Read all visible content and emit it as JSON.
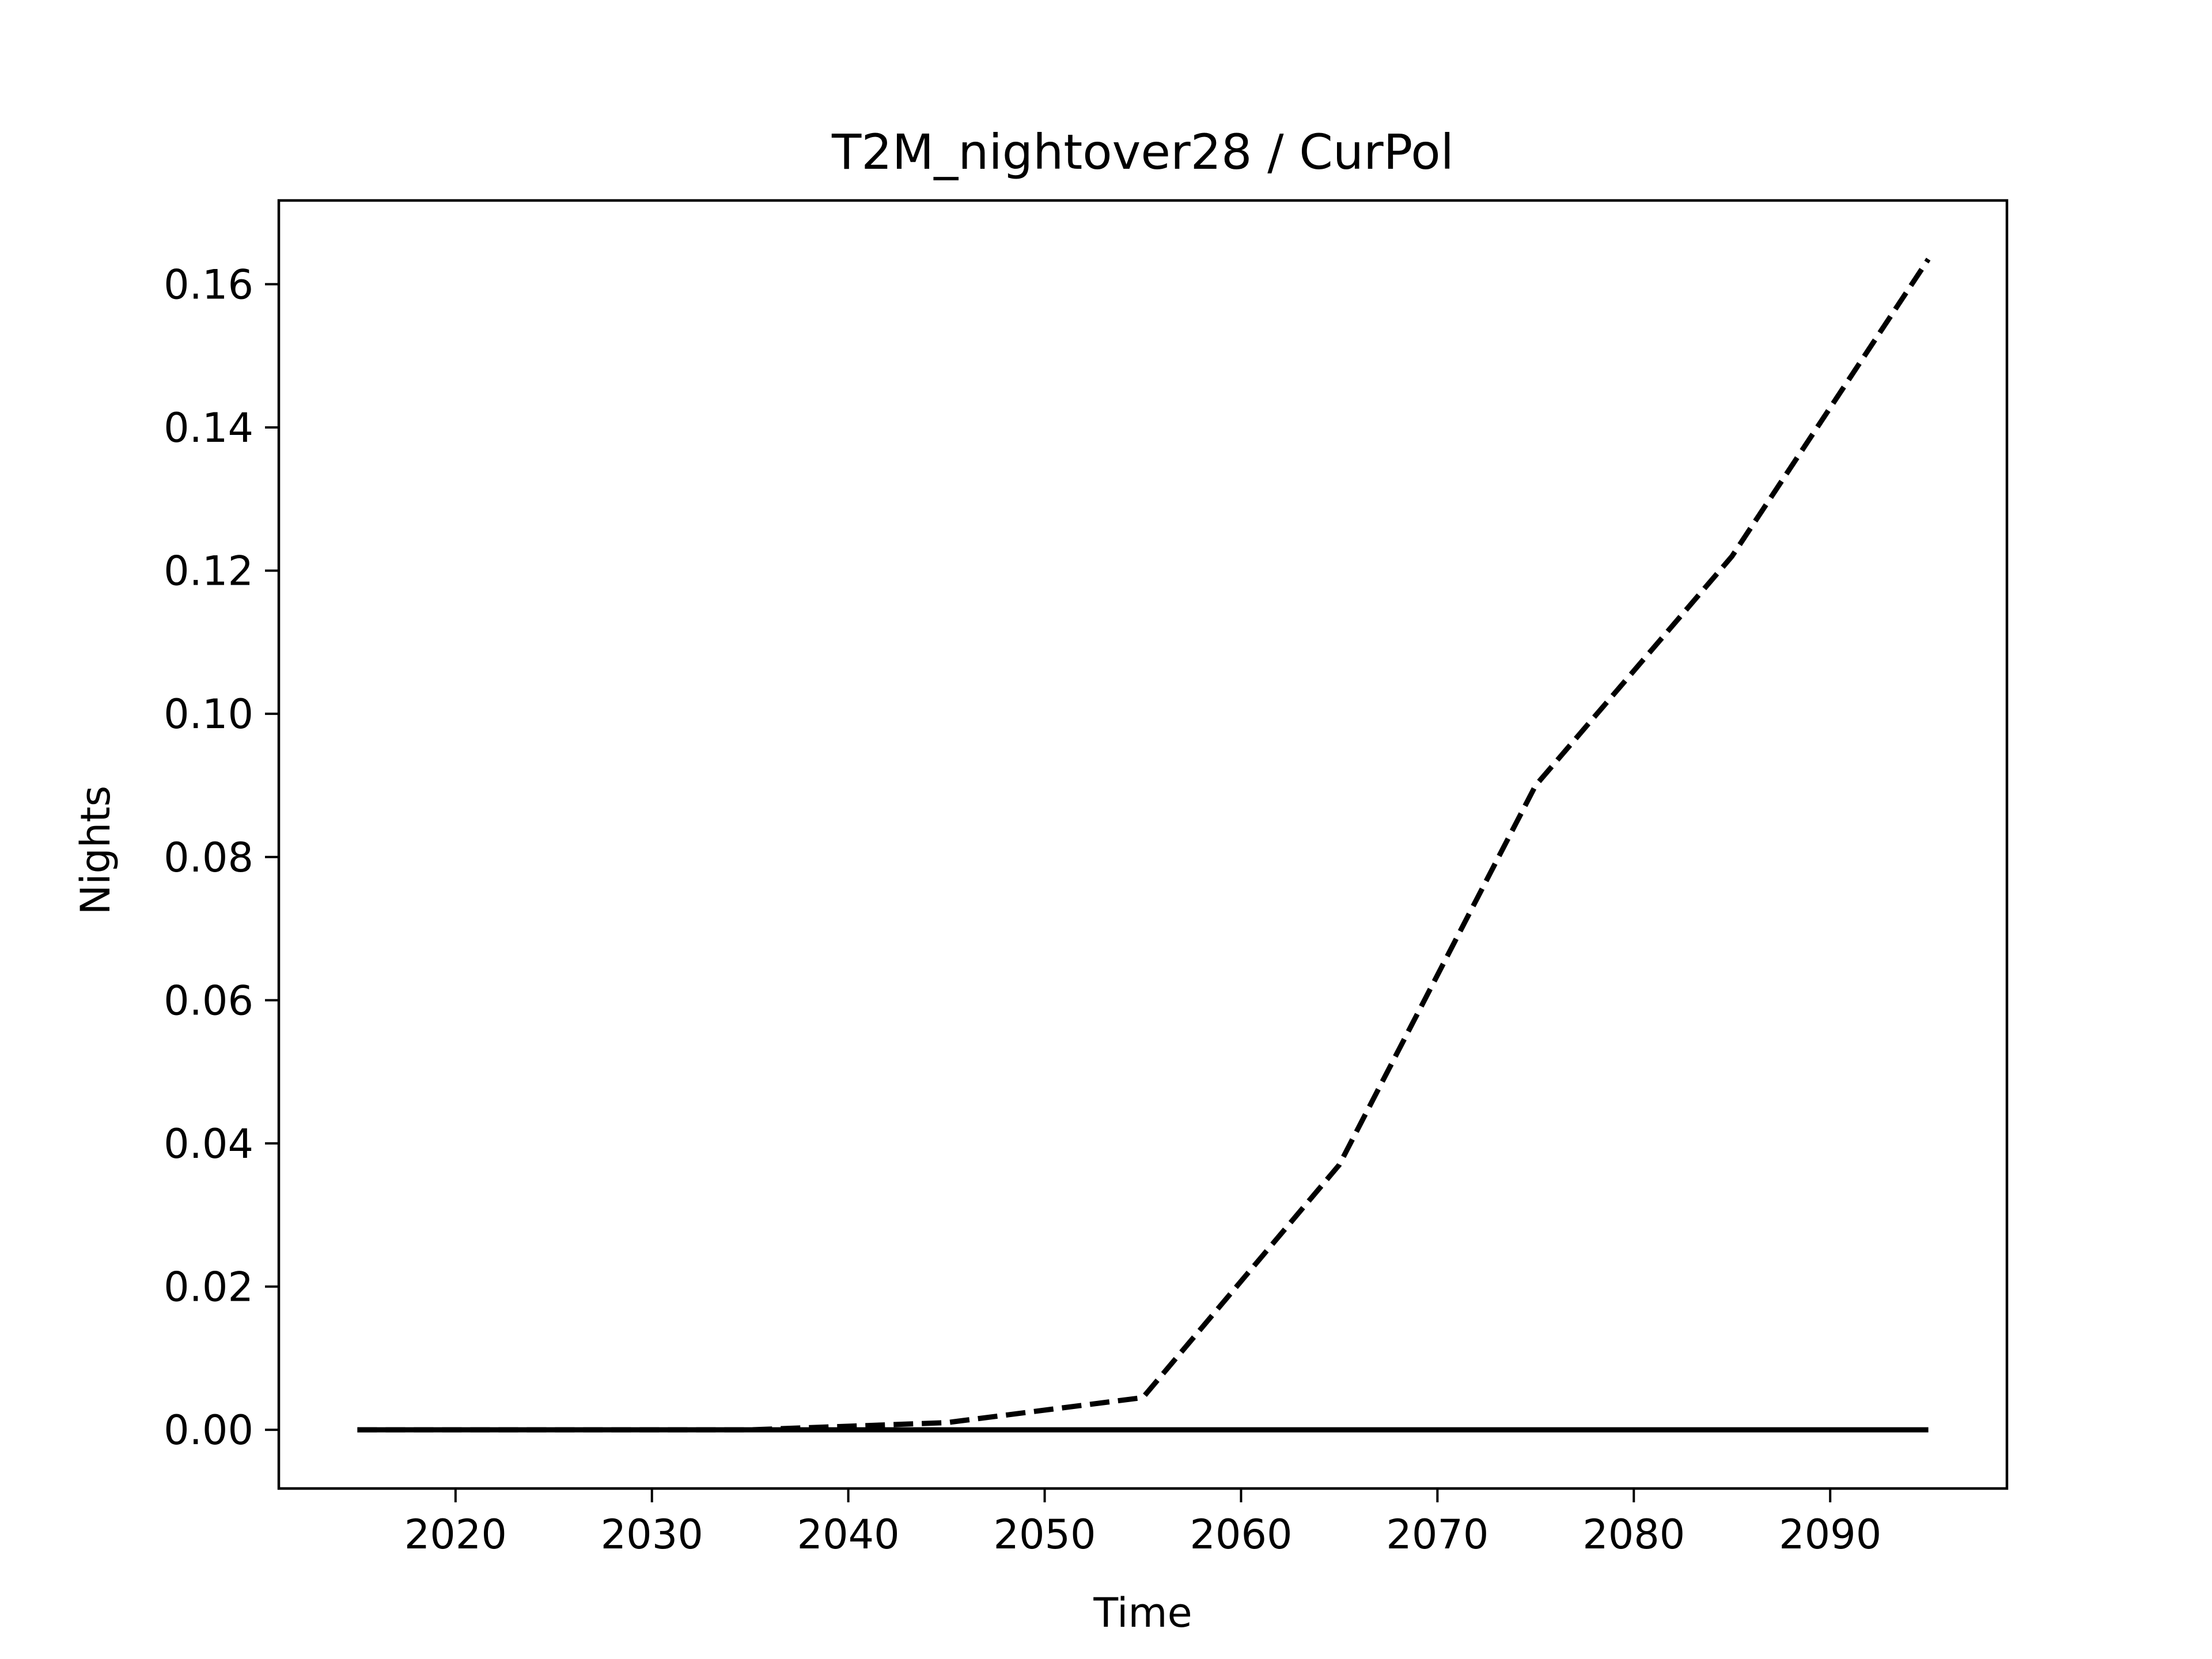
{
  "chart_data": {
    "type": "line",
    "title": "T2M_nightover28 / CurPol",
    "xlabel": "Time",
    "ylabel": "Nights",
    "xlim": [
      2011,
      2099
    ],
    "ylim": [
      -0.0082,
      0.1717
    ],
    "xticks": [
      2020,
      2030,
      2040,
      2050,
      2060,
      2070,
      2080,
      2090
    ],
    "xtick_labels": [
      "2020",
      "2030",
      "2040",
      "2050",
      "2060",
      "2070",
      "2080",
      "2090"
    ],
    "yticks": [
      0.0,
      0.02,
      0.04,
      0.06,
      0.08,
      0.1,
      0.12,
      0.14,
      0.16
    ],
    "ytick_labels": [
      "0.00",
      "0.02",
      "0.04",
      "0.06",
      "0.08",
      "0.10",
      "0.12",
      "0.14",
      "0.16"
    ],
    "grid": false,
    "x": [
      2015,
      2025,
      2035,
      2045,
      2055,
      2065,
      2075,
      2085,
      2095
    ],
    "series": [
      {
        "style": "dashed",
        "color": "#000000",
        "values": [
          0.0,
          0.0,
          0.0,
          0.001,
          0.0045,
          0.037,
          0.09,
          0.122,
          0.1635
        ]
      },
      {
        "style": "solid",
        "color": "#000000",
        "values": [
          0.0,
          0.0,
          0.0,
          0.0,
          0.0,
          0.0,
          0.0,
          0.0,
          0.0
        ]
      }
    ]
  }
}
